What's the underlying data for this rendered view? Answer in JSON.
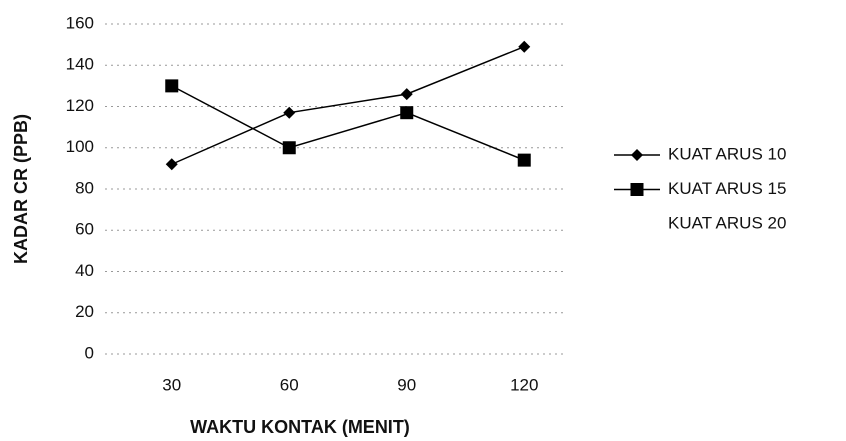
{
  "chart_data": {
    "type": "line",
    "x_label": "WAKTU KONTAK (MENIT)",
    "y_label": "KADAR CR (PPB)",
    "categories": [
      "30",
      "60",
      "90",
      "120"
    ],
    "series": [
      {
        "name": "KUAT ARUS 10",
        "color": "#000000",
        "marker": "diamond",
        "values": [
          92,
          117,
          126,
          149
        ]
      },
      {
        "name": "KUAT ARUS 15",
        "color": "#000000",
        "marker": "square",
        "values": [
          130,
          100,
          117,
          94
        ]
      },
      {
        "name": "KUAT ARUS 20",
        "values": [
          null,
          null,
          null,
          null
        ]
      }
    ],
    "ylim": [
      0,
      160
    ],
    "yticks": [
      0,
      20,
      40,
      60,
      80,
      100,
      120,
      140,
      160
    ],
    "grid": true,
    "legend": "right"
  }
}
